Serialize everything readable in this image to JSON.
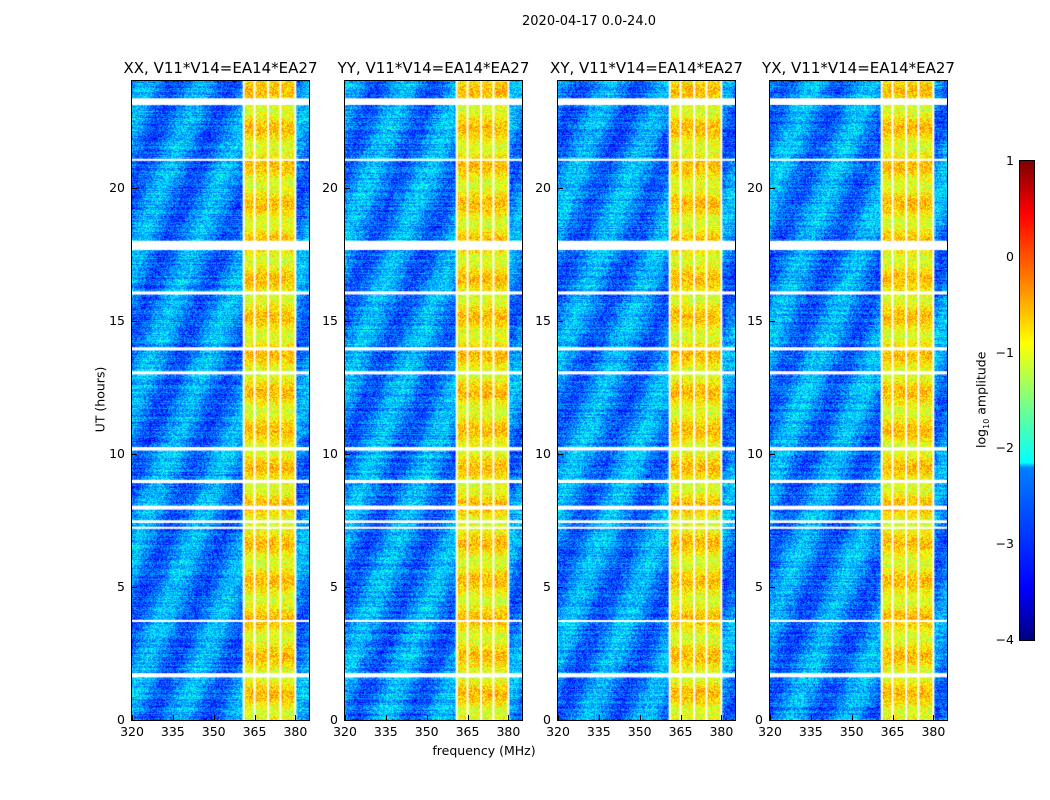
{
  "chart_data": {
    "type": "heatmap",
    "title": "2020-04-17 0.0-24.0",
    "xlabel": "frequency (MHz)",
    "ylabel": "UT (hours)",
    "xlim": [
      320,
      385
    ],
    "ylim": [
      0,
      24
    ],
    "xticks": [
      320,
      335,
      350,
      365,
      380
    ],
    "yticks": [
      0,
      5,
      10,
      15,
      20
    ],
    "panels": [
      {
        "title": "XX, V11*V14=EA14*EA27"
      },
      {
        "title": "YY, V11*V14=EA14*EA27"
      },
      {
        "title": "XY, V11*V14=EA14*EA27"
      },
      {
        "title": "YX, V11*V14=EA14*EA27"
      }
    ],
    "rfi_band_mhz": [
      361,
      380
    ],
    "rfi_band_level": -0.8,
    "background_level": -2.7,
    "band_gap_channels_mhz": [
      361,
      365,
      370,
      374.5,
      380
    ],
    "flagged_hours": [
      [
        23.1,
        23.35
      ],
      [
        21.0,
        21.08
      ],
      [
        17.65,
        18.0
      ],
      [
        15.98,
        16.1
      ],
      [
        13.88,
        14.0
      ],
      [
        12.98,
        13.1
      ],
      [
        10.12,
        10.25
      ],
      [
        8.9,
        9.02
      ],
      [
        7.9,
        8.05
      ],
      [
        7.4,
        7.5
      ],
      [
        7.18,
        7.26
      ],
      [
        3.68,
        3.76
      ],
      [
        1.6,
        1.76
      ]
    ],
    "colorbar": {
      "label_prefix": "log",
      "label_sub": "10",
      "label_suffix": " amplitude",
      "range": [
        -4,
        1
      ],
      "ticks": [
        "1",
        "0",
        "−1",
        "−2",
        "−3",
        "−4"
      ],
      "colormap": "jet"
    }
  }
}
